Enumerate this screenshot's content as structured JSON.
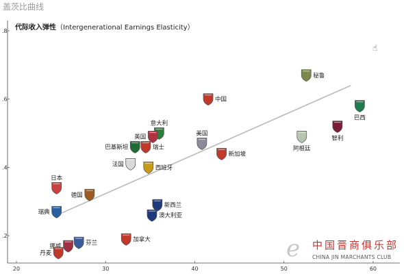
{
  "page": {
    "title": "盖茨比曲线",
    "axis_title_cn": "代际收入弹性",
    "axis_title_en": "（Intergenerational Earnings Elasticity）"
  },
  "watermark": {
    "logo_glyph": "e",
    "name_cn": "中国晋商俱乐部",
    "name_en": "CHINA JIN MARCHANTS CLUB"
  },
  "chart_data": {
    "type": "scatter",
    "title": "",
    "xlabel": "",
    "ylabel": "代际收入弹性（Intergenerational Earnings Elasticity）",
    "xlim": [
      19,
      63
    ],
    "ylim": [
      0.12,
      0.83
    ],
    "xticks": [
      {
        "value": 20,
        "label": "20"
      },
      {
        "value": 30,
        "label": "30"
      },
      {
        "value": 40,
        "label": "40"
      },
      {
        "value": 50,
        "label": "50"
      },
      {
        "value": 60,
        "label": "60"
      }
    ],
    "yticks": [
      {
        "value": 0.2,
        "label": ".2"
      },
      {
        "value": 0.4,
        "label": ".4"
      },
      {
        "value": 0.6,
        "label": ".6"
      },
      {
        "value": 0.8,
        "label": ".8"
      }
    ],
    "grid": false,
    "trendline": {
      "x": [
        24.5,
        57.5
      ],
      "y": [
        0.26,
        0.64
      ]
    },
    "points": [
      {
        "label": "秘鲁",
        "x": 52.5,
        "y": 0.67,
        "color": "#7b8a4a",
        "label_side": "right"
      },
      {
        "label": "巴西",
        "x": 58.5,
        "y": 0.58,
        "color": "#1f7a4e",
        "label_side": "below"
      },
      {
        "label": "中国",
        "x": 41.5,
        "y": 0.6,
        "color": "#c0392b",
        "label_side": "right"
      },
      {
        "label": "智利",
        "x": 56.0,
        "y": 0.52,
        "color": "#7a1f3a",
        "label_side": "below"
      },
      {
        "label": "阿根廷",
        "x": 52.0,
        "y": 0.49,
        "color": "#b8c4b0",
        "label_side": "below"
      },
      {
        "label": "意大利",
        "x": 36.0,
        "y": 0.5,
        "color": "#2f7d3a",
        "label_side": "above"
      },
      {
        "label": "英国",
        "x": 35.3,
        "y": 0.49,
        "color": "#b03040",
        "label_side": "left"
      },
      {
        "label": "美国",
        "x": 40.8,
        "y": 0.47,
        "color": "#8a8a99",
        "label_side": "above"
      },
      {
        "label": "巴基斯坦",
        "x": 33.3,
        "y": 0.46,
        "color": "#1f6b34",
        "label_side": "left"
      },
      {
        "label": "瑞士",
        "x": 34.5,
        "y": 0.46,
        "color": "#c0392b",
        "label_side": "right"
      },
      {
        "label": "新加坡",
        "x": 43.0,
        "y": 0.44,
        "color": "#c0392b",
        "label_side": "right"
      },
      {
        "label": "法国",
        "x": 32.8,
        "y": 0.41,
        "color": "#d9d9d9",
        "label_side": "left"
      },
      {
        "label": "西班牙",
        "x": 34.8,
        "y": 0.4,
        "color": "#c99a1a",
        "label_side": "right"
      },
      {
        "label": "日本",
        "x": 24.5,
        "y": 0.34,
        "color": "#c94040",
        "label_side": "above"
      },
      {
        "label": "德国",
        "x": 28.2,
        "y": 0.32,
        "color": "#9a5a20",
        "label_side": "left"
      },
      {
        "label": "瑞典",
        "x": 24.5,
        "y": 0.27,
        "color": "#2a5fa0",
        "label_side": "left"
      },
      {
        "label": "新西兰",
        "x": 35.8,
        "y": 0.29,
        "color": "#1f3a7a",
        "label_side": "right"
      },
      {
        "label": "澳大利亚",
        "x": 35.2,
        "y": 0.26,
        "color": "#1f3a7a",
        "label_side": "right"
      },
      {
        "label": "挪威",
        "x": 25.8,
        "y": 0.17,
        "color": "#a03040",
        "label_side": "left"
      },
      {
        "label": "芬兰",
        "x": 27.0,
        "y": 0.18,
        "color": "#3a5a9a",
        "label_side": "right"
      },
      {
        "label": "加拿大",
        "x": 32.3,
        "y": 0.19,
        "color": "#c0392b",
        "label_side": "right"
      },
      {
        "label": "丹麦",
        "x": 24.7,
        "y": 0.15,
        "color": "#c0392b",
        "label_side": "left"
      }
    ]
  }
}
